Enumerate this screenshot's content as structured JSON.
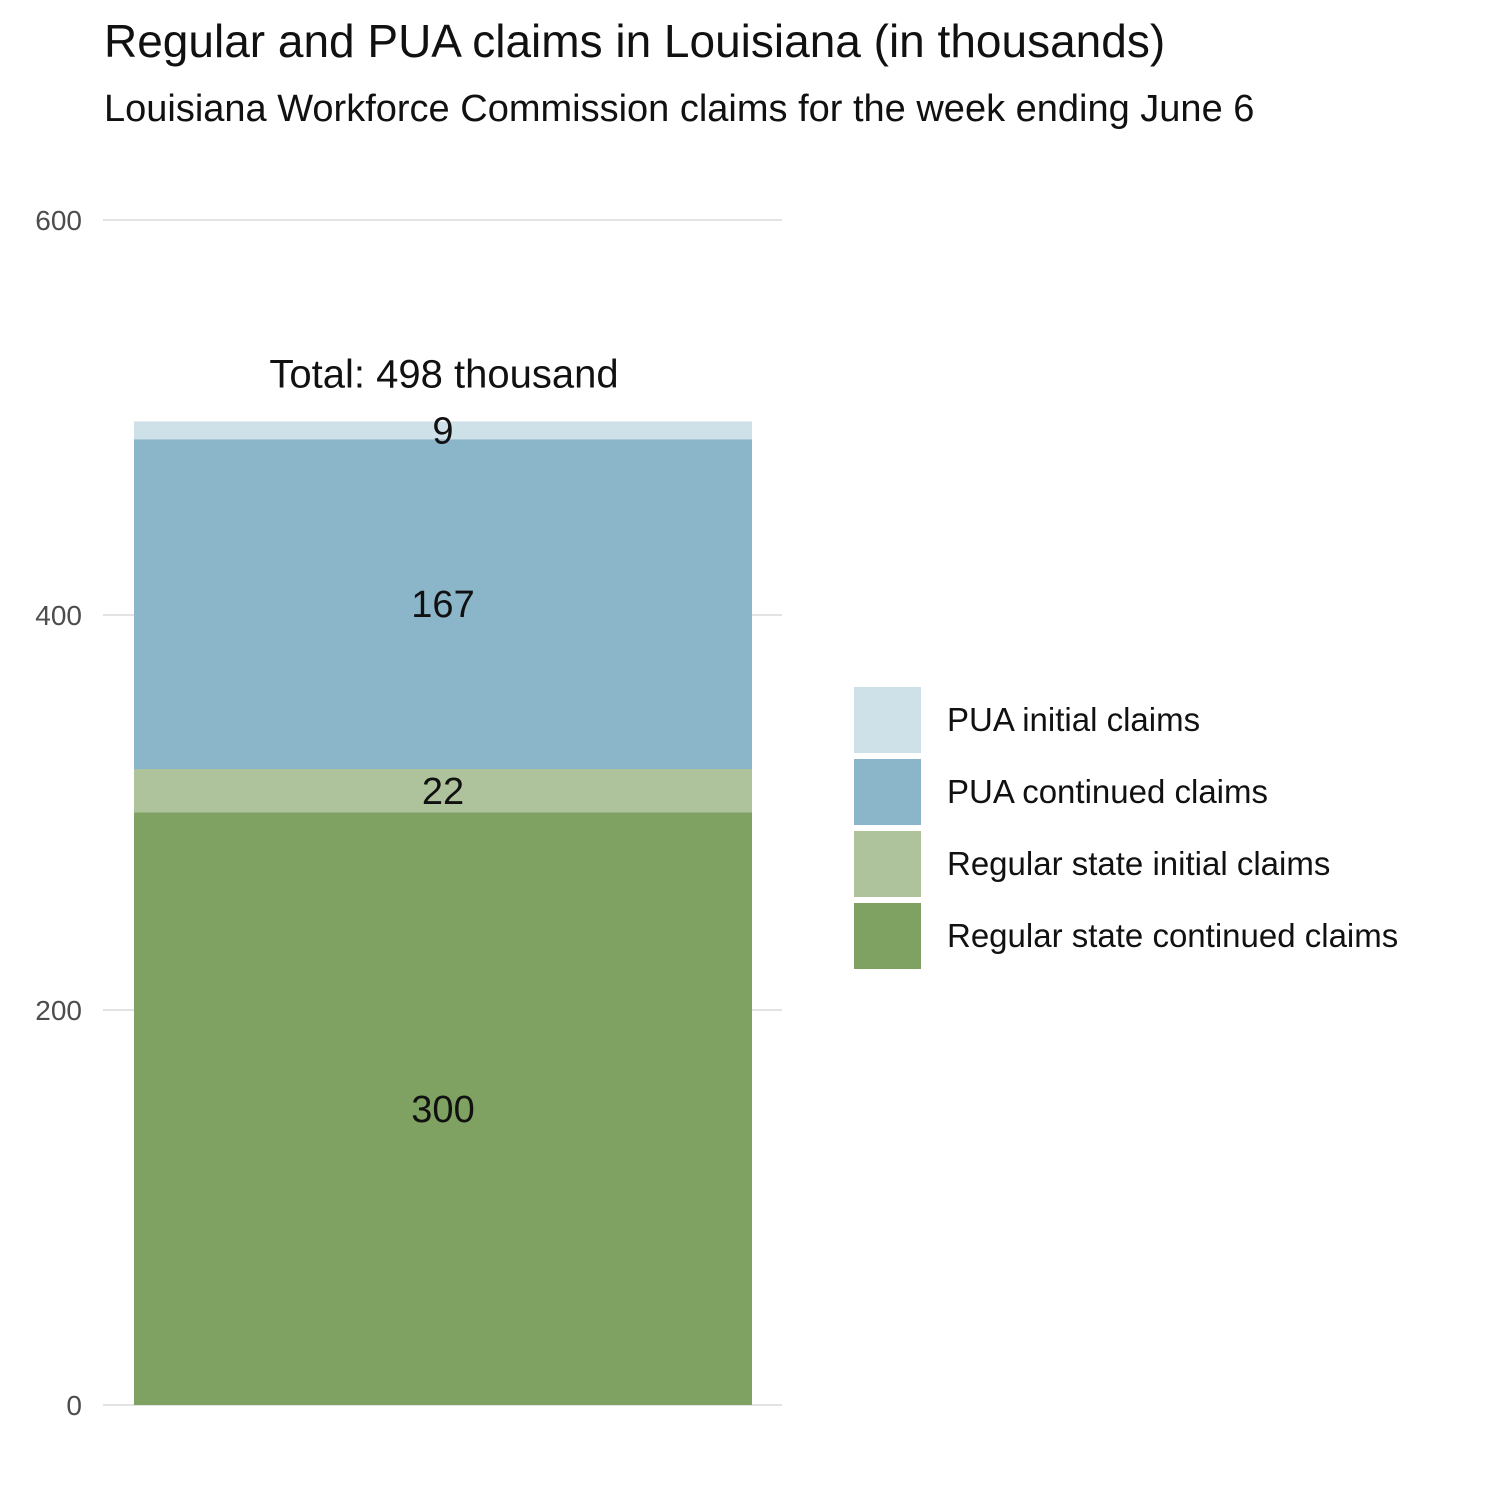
{
  "title": "Regular and PUA claims in Louisiana (in thousands)",
  "subtitle": "Louisiana Workforce Commission claims for the week ending June 6",
  "chart_data": {
    "type": "bar",
    "stacked": true,
    "categories": [
      ""
    ],
    "series": [
      {
        "name": "Regular state continued claims",
        "values": [
          300
        ],
        "color": "#7fa263"
      },
      {
        "name": "Regular state initial claims",
        "values": [
          22
        ],
        "color": "#aec39b"
      },
      {
        "name": "PUA continued claims",
        "values": [
          167
        ],
        "color": "#8bb5c8"
      },
      {
        "name": "PUA initial claims",
        "values": [
          9
        ],
        "color": "#cfe1e8"
      }
    ],
    "data_labels": [
      "300",
      "22",
      "167",
      "9"
    ],
    "total_label": "Total: 498 thousand",
    "yticks": [
      0,
      200,
      400,
      600
    ],
    "ylim": [
      0,
      600
    ],
    "grid": true,
    "legend_position": "right",
    "legend_order": [
      "PUA initial claims",
      "PUA continued claims",
      "Regular state initial claims",
      "Regular state continued claims"
    ]
  }
}
